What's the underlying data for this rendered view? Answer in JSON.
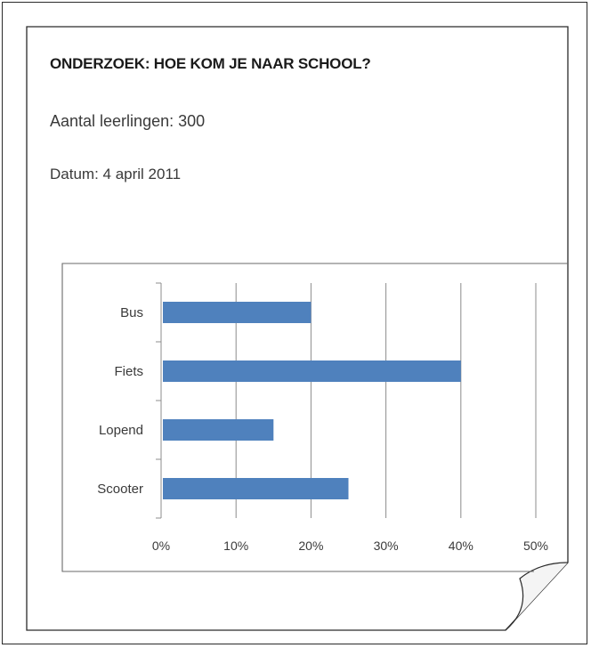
{
  "document": {
    "title": "ONDERZOEK: HOE KOM JE NAAR SCHOOL?",
    "count_line": "Aantal leerlingen: 300",
    "date_line": "Datum: 4 april 2011"
  },
  "colors": {
    "bar": "#4f81bd",
    "grid": "#8c8c8c",
    "frame": "#2a2a2a"
  },
  "chart_data": {
    "type": "bar",
    "orientation": "horizontal",
    "categories": [
      "Bus",
      "Fiets",
      "Lopend",
      "Scooter"
    ],
    "values": [
      20,
      40,
      15,
      25
    ],
    "value_unit": "%",
    "xlim": [
      0,
      50
    ],
    "xticks": [
      "0%",
      "10%",
      "20%",
      "30%",
      "40%",
      "50%"
    ],
    "grid": "vertical",
    "legend": "none"
  }
}
